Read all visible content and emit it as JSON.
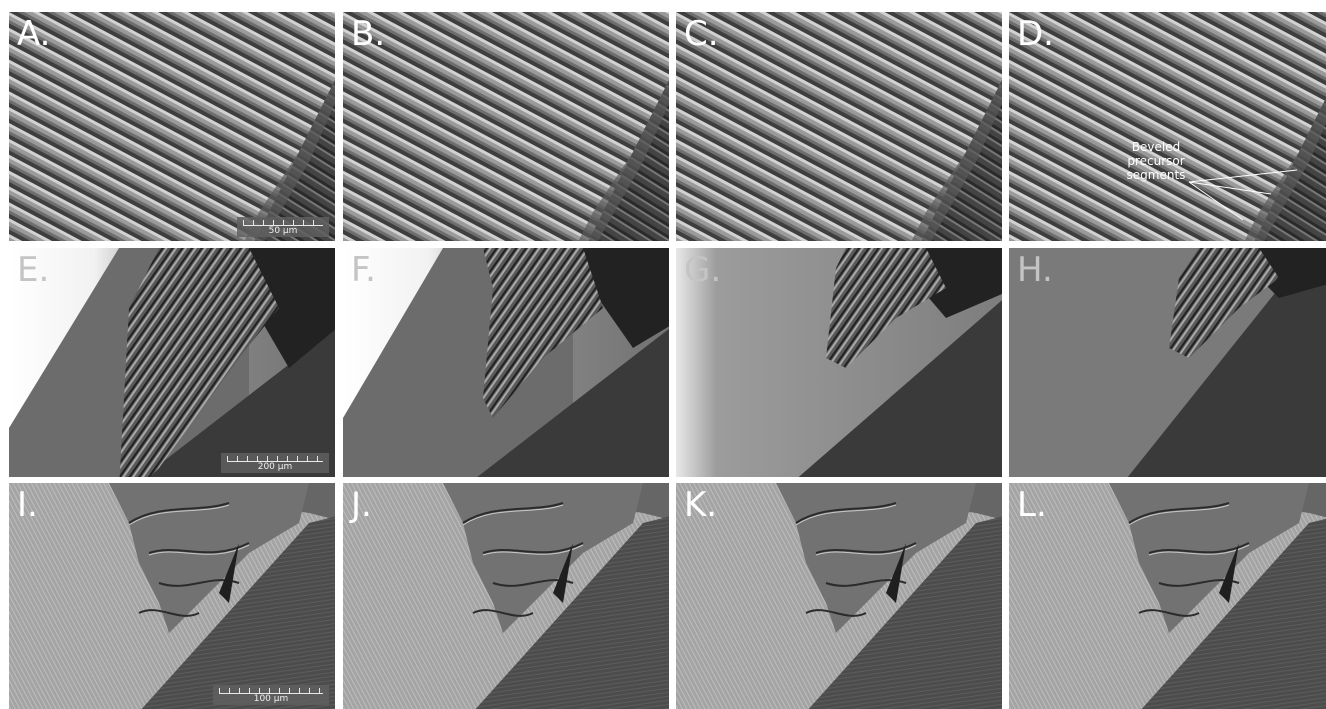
{
  "panels": [
    {
      "label": "A.",
      "row": 0,
      "col": 0,
      "scale": "50 µm"
    },
    {
      "label": "B.",
      "row": 0,
      "col": 1,
      "scale": null
    },
    {
      "label": "C.",
      "row": 0,
      "col": 2,
      "scale": null
    },
    {
      "label": "D.",
      "row": 0,
      "col": 3,
      "scale": null,
      "annotation": "Beveled precursor segments"
    },
    {
      "label": "E.",
      "row": 1,
      "col": 0,
      "scale": "200 µm"
    },
    {
      "label": "F.",
      "row": 1,
      "col": 1,
      "scale": null
    },
    {
      "label": "G.",
      "row": 1,
      "col": 2,
      "scale": null
    },
    {
      "label": "H.",
      "row": 1,
      "col": 3,
      "scale": null
    },
    {
      "label": "I.",
      "row": 2,
      "col": 0,
      "scale": "100 µm"
    },
    {
      "label": "J.",
      "row": 2,
      "col": 1,
      "scale": null
    },
    {
      "label": "K.",
      "row": 2,
      "col": 2,
      "scale": null
    },
    {
      "label": "L.",
      "row": 2,
      "col": 3,
      "scale": null
    }
  ],
  "annotation_lines": [
    "Beveled",
    "precursor",
    "segments"
  ],
  "colors": {
    "row1_label": "#ffffff",
    "row2_label": "#c4c4c4",
    "row3_label": "#ffffff"
  }
}
